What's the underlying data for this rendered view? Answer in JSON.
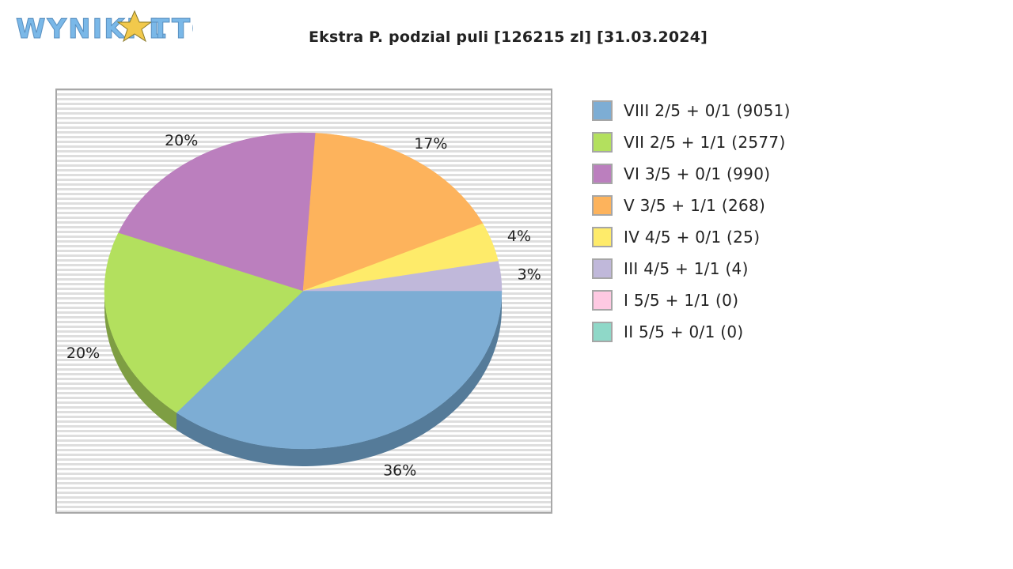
{
  "header": {
    "logo_text": "WYNIKI LOTTO",
    "title": "Ekstra P. podzial puli [126215 zl] [31.03.2024]"
  },
  "colors": {
    "background": "#ffffff",
    "plot_background_stripe": "#dcdcdc",
    "logo_blue": "#7ab8e8"
  },
  "chart_data": {
    "type": "pie",
    "title": "Ekstra P. podzial puli [126215 zl] [31.03.2024]",
    "legend_position": "right",
    "grid": false,
    "slices": [
      {
        "label": "VIII 2/5 + 0/1 (9051)",
        "percent_label": "36%",
        "value": 36,
        "color": "#7dadd4",
        "shade": "#557b99"
      },
      {
        "label": "VII 2/5 + 1/1 (2577)",
        "percent_label": "20%",
        "value": 20,
        "color": "#b3e05e",
        "shade": "#7e9e43"
      },
      {
        "label": "VI 3/5 + 0/1 (990)",
        "percent_label": "20%",
        "value": 20,
        "color": "#bb7fbe",
        "shade": "#855a87"
      },
      {
        "label": "V 3/5 + 1/1 (268)",
        "percent_label": "17%",
        "value": 17,
        "color": "#fdb35c",
        "shade": "#b47f41"
      },
      {
        "label": "IV 4/5 + 0/1 (25)",
        "percent_label": "4%",
        "value": 4,
        "color": "#feeb6a",
        "shade": "#b4a64b"
      },
      {
        "label": "III 4/5 + 1/1 (4)",
        "percent_label": "3%",
        "value": 3,
        "color": "#c0b8da",
        "shade": "#88829b"
      },
      {
        "label": "I 5/5 + 1/1 (0)",
        "percent_label": "",
        "value": 0,
        "color": "#fec9e2",
        "shade": "#b48ea0"
      },
      {
        "label": "II 5/5 + 0/1 (0)",
        "percent_label": "",
        "value": 0,
        "color": "#8fd8c8",
        "shade": "#65998e"
      }
    ]
  }
}
